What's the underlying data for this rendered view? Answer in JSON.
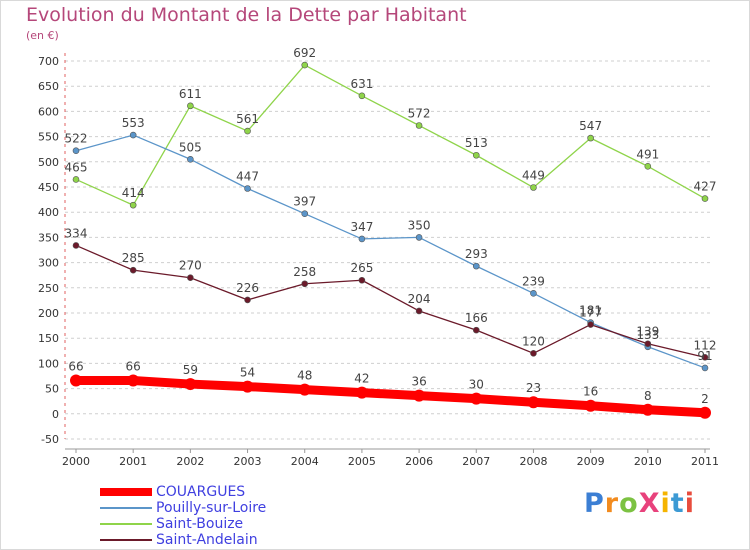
{
  "title": "Evolution du Montant de la Dette par Habitant",
  "subtitle": "(en €)",
  "logo": "ProXiti",
  "chart_data": {
    "type": "line",
    "title": "Evolution du Montant de la Dette par Habitant",
    "subtitle": "(en €)",
    "xlabel": "",
    "ylabel": "",
    "categories": [
      "2000",
      "2001",
      "2002",
      "2003",
      "2004",
      "2005",
      "2006",
      "2007",
      "2008",
      "2009",
      "2010",
      "2011"
    ],
    "yticks": [
      -50,
      0,
      50,
      100,
      150,
      200,
      250,
      300,
      350,
      400,
      450,
      500,
      550,
      600,
      650,
      700
    ],
    "ylim": [
      -50,
      700
    ],
    "grid": "horizontal-dashed",
    "legend_position": "bottom-left",
    "series": [
      {
        "name": "COUARGUES",
        "color": "#ff0000",
        "values": [
          66,
          66,
          59,
          54,
          48,
          42,
          36,
          30,
          23,
          16,
          8,
          2
        ],
        "labels": [
          "66",
          "66",
          "59",
          "54",
          "48",
          "42",
          "36",
          "30",
          "23",
          "16",
          "8",
          "2"
        ]
      },
      {
        "name": "Pouilly-sur-Loire",
        "color": "#5b95c9",
        "values": [
          522,
          553,
          505,
          447,
          397,
          347,
          350,
          293,
          239,
          181,
          133,
          91
        ],
        "labels": [
          "522",
          "553",
          "505",
          "447",
          "397",
          "347",
          "350",
          "293",
          "239",
          "181",
          "133",
          "91"
        ]
      },
      {
        "name": "Saint-Bouize",
        "color": "#8fd44a",
        "values": [
          465,
          414,
          611,
          561,
          692,
          631,
          572,
          513,
          449,
          547,
          491,
          427
        ],
        "labels": [
          "465",
          "414",
          "611",
          "561",
          "692",
          "631",
          "572",
          "513",
          "449",
          "547",
          "491",
          "427"
        ]
      },
      {
        "name": "Saint-Andelain",
        "color": "#6b1a2a",
        "values": [
          334,
          285,
          270,
          226,
          258,
          265,
          204,
          166,
          120,
          177,
          139,
          112
        ],
        "labels": [
          "334",
          "285",
          "270",
          "226",
          "258",
          "265",
          "204",
          "166",
          "120",
          "177",
          "139",
          "112"
        ]
      }
    ]
  }
}
